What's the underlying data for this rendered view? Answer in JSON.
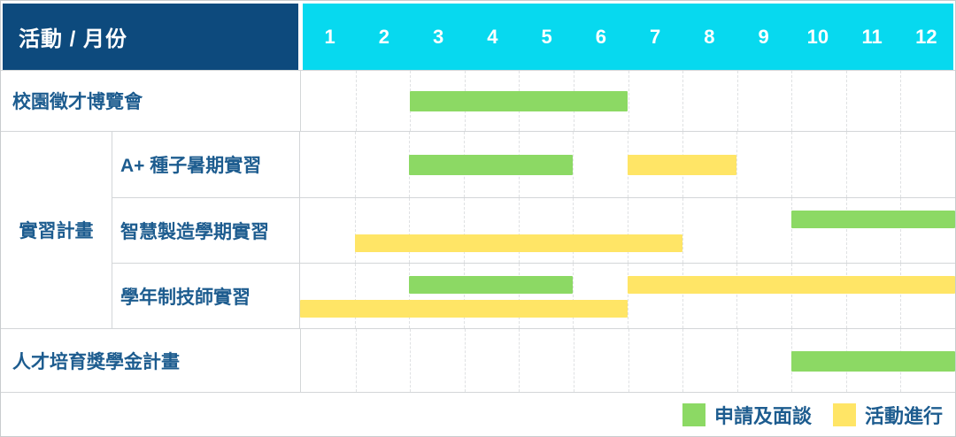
{
  "header": {
    "corner_label": "活動 / 月份",
    "months": [
      "1",
      "2",
      "3",
      "4",
      "5",
      "6",
      "7",
      "8",
      "9",
      "10",
      "11",
      "12"
    ]
  },
  "group": {
    "label": "實習計畫"
  },
  "colors": {
    "header_bg": "#0D4A7D",
    "months_bg": "#07D9EF",
    "green": "#8CD964",
    "yellow": "#FFE566",
    "label_text": "#1D5C8F"
  },
  "chart_data": {
    "type": "bar",
    "subtype": "gantt",
    "title": "活動 / 月份",
    "xlabel": "月份",
    "x_ticks": [
      1,
      2,
      3,
      4,
      5,
      6,
      7,
      8,
      9,
      10,
      11,
      12
    ],
    "x_range": [
      1,
      12
    ],
    "grid": "vertical-dashed",
    "legend_position": "bottom-right",
    "legend": [
      {
        "label": "申請及面談",
        "color": "#8CD964"
      },
      {
        "label": "活動進行",
        "color": "#FFE566"
      }
    ],
    "tasks": [
      {
        "label": "校園徵才博覽會",
        "group": null,
        "lanes": [
          [
            {
              "phase": "申請及面談",
              "start": 3,
              "end": 6
            }
          ]
        ]
      },
      {
        "label": "A+ 種子暑期實習",
        "group": "實習計畫",
        "lanes": [
          [
            {
              "phase": "申請及面談",
              "start": 3,
              "end": 5
            },
            {
              "phase": "活動進行",
              "start": 7,
              "end": 8
            }
          ]
        ]
      },
      {
        "label": "智慧製造學期實習",
        "group": "實習計畫",
        "lanes": [
          [
            {
              "phase": "申請及面談",
              "start": 10,
              "end": 12
            }
          ],
          [
            {
              "phase": "活動進行",
              "start": 2,
              "end": 7
            }
          ]
        ]
      },
      {
        "label": "學年制技師實習",
        "group": "實習計畫",
        "lanes": [
          [
            {
              "phase": "申請及面談",
              "start": 3,
              "end": 5
            },
            {
              "phase": "活動進行",
              "start": 7,
              "end": 12
            }
          ],
          [
            {
              "phase": "活動進行",
              "start": 1,
              "end": 6
            }
          ]
        ]
      },
      {
        "label": "人才培育獎學金計畫",
        "group": null,
        "lanes": [
          [
            {
              "phase": "申請及面談",
              "start": 10,
              "end": 12
            }
          ]
        ]
      }
    ]
  }
}
